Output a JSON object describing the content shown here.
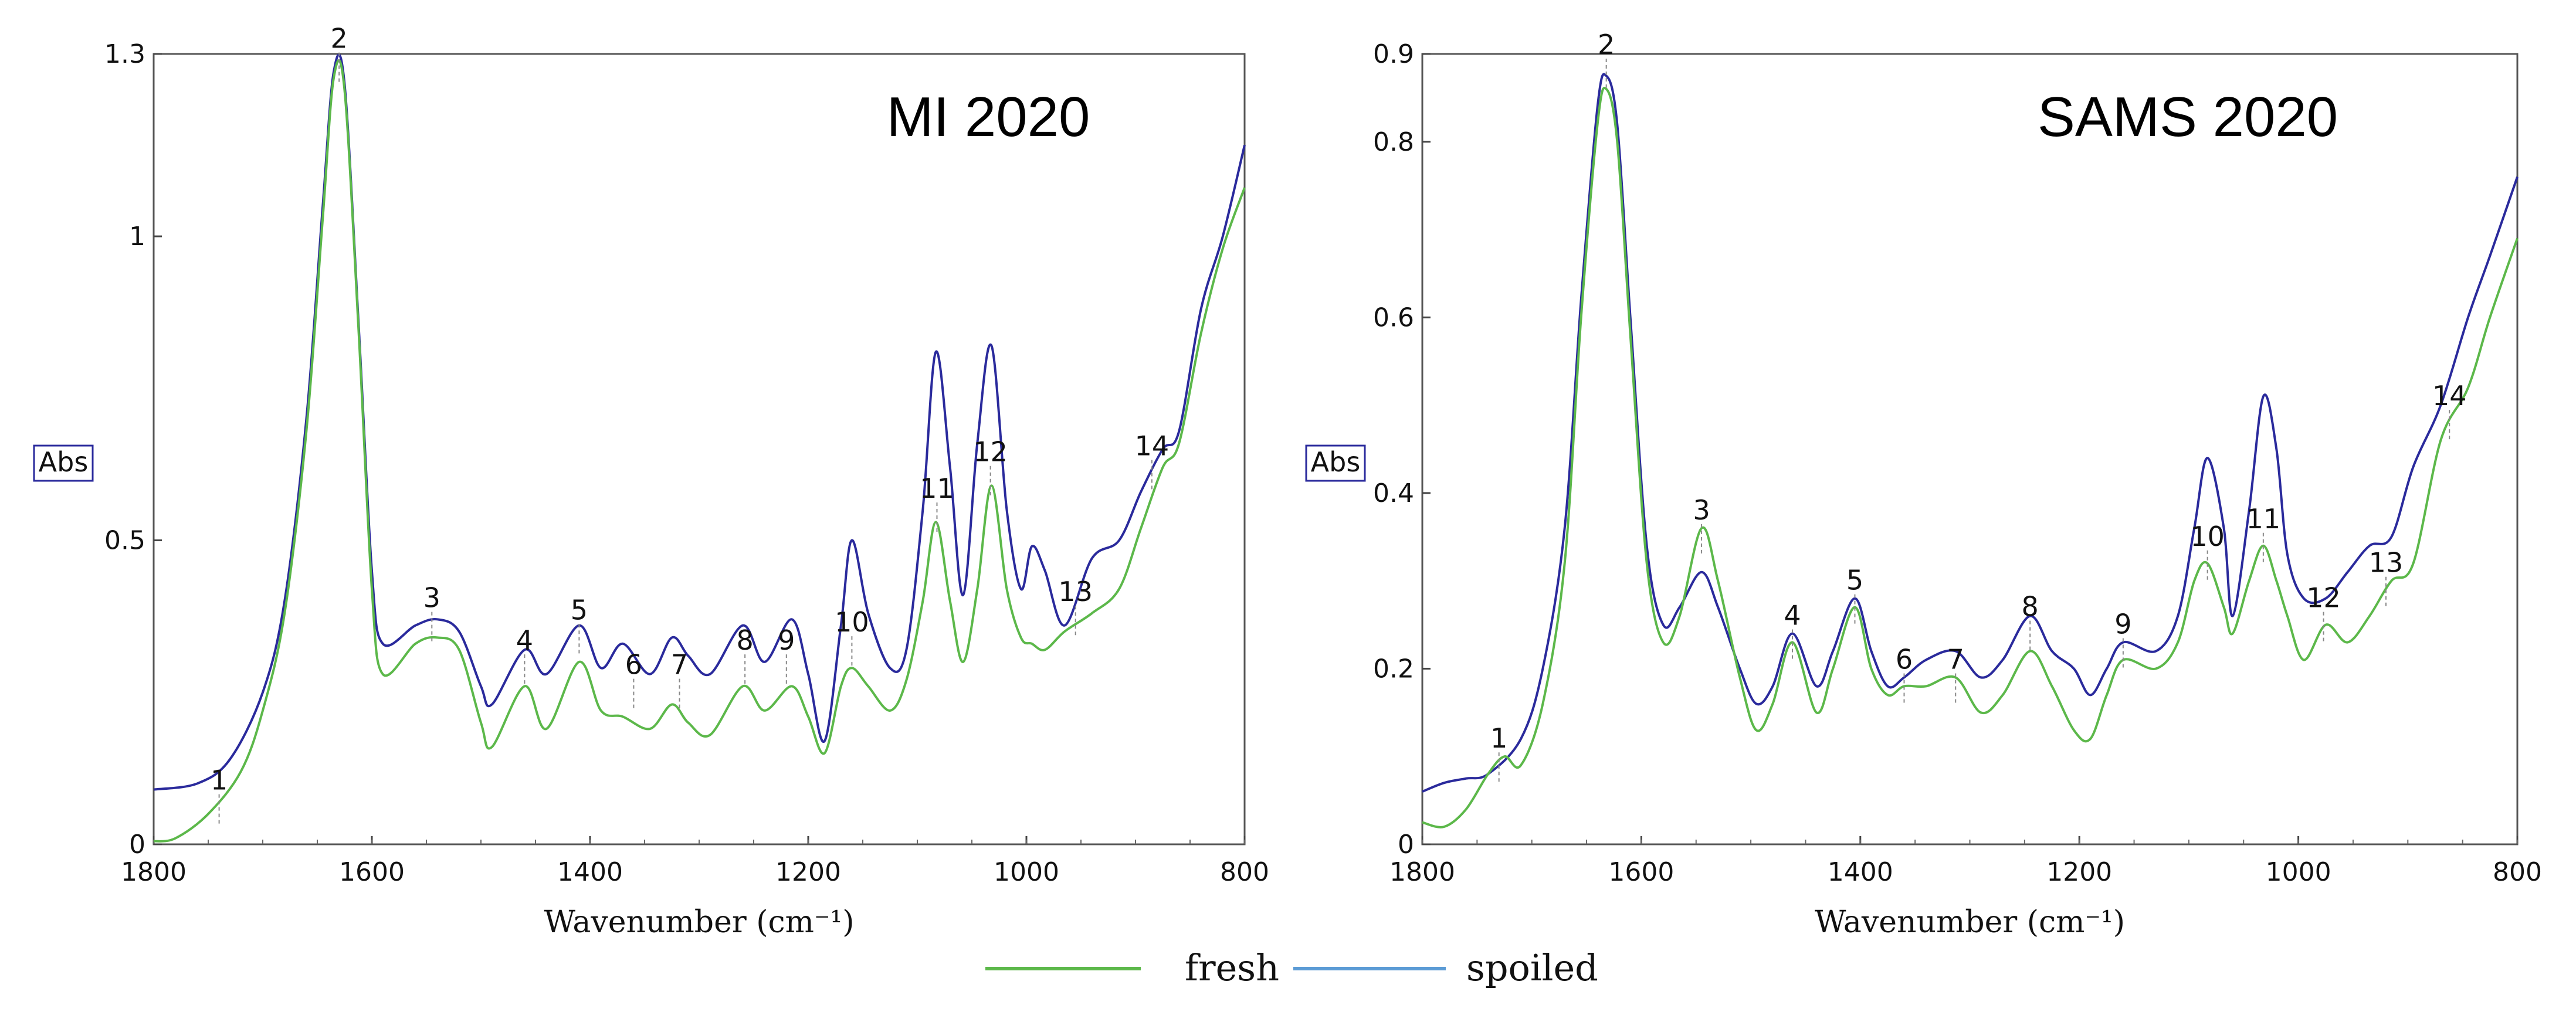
{
  "legend": [
    {
      "label": "fresh",
      "color": "#5cb84a"
    },
    {
      "label": "spoiled",
      "color": "#5b9bd5"
    }
  ],
  "chart_data": [
    {
      "type": "line",
      "title": "MI 2020",
      "xlabel": "Wavenumber (cm⁻¹)",
      "ylabel": "Abs",
      "xlim": [
        1800,
        800
      ],
      "ylim": [
        0,
        1.3
      ],
      "xticks": [
        1800,
        1600,
        1400,
        1200,
        1000,
        800
      ],
      "yticks": [
        0,
        0.5,
        1,
        1.3
      ],
      "ytick_labels": [
        "0",
        "0.5",
        "1",
        "1.3"
      ],
      "series": [
        {
          "name": "spoiled",
          "color": "#2a2a9c",
          "x": [
            1800,
            1760,
            1730,
            1700,
            1680,
            1660,
            1645,
            1635,
            1625,
            1612,
            1600,
            1590,
            1560,
            1540,
            1520,
            1500,
            1490,
            1460,
            1440,
            1410,
            1390,
            1370,
            1345,
            1325,
            1310,
            1290,
            1260,
            1240,
            1215,
            1200,
            1185,
            1170,
            1160,
            1145,
            1125,
            1110,
            1095,
            1083,
            1070,
            1058,
            1045,
            1032,
            1018,
            1005,
            995,
            983,
            965,
            940,
            915,
            895,
            875,
            860,
            840,
            820,
            800
          ],
          "y": [
            0.09,
            0.1,
            0.14,
            0.25,
            0.4,
            0.7,
            1.05,
            1.27,
            1.25,
            0.85,
            0.45,
            0.33,
            0.36,
            0.37,
            0.35,
            0.26,
            0.23,
            0.32,
            0.28,
            0.36,
            0.29,
            0.33,
            0.28,
            0.34,
            0.31,
            0.28,
            0.36,
            0.3,
            0.37,
            0.28,
            0.17,
            0.36,
            0.5,
            0.38,
            0.29,
            0.32,
            0.55,
            0.81,
            0.62,
            0.41,
            0.66,
            0.82,
            0.55,
            0.42,
            0.49,
            0.45,
            0.36,
            0.47,
            0.5,
            0.58,
            0.65,
            0.68,
            0.88,
            1.0,
            1.15
          ]
        },
        {
          "name": "fresh",
          "color": "#5cb84a",
          "x": [
            1800,
            1780,
            1750,
            1720,
            1700,
            1680,
            1660,
            1645,
            1635,
            1625,
            1612,
            1600,
            1590,
            1560,
            1540,
            1520,
            1500,
            1490,
            1460,
            1440,
            1410,
            1390,
            1370,
            1345,
            1325,
            1310,
            1290,
            1260,
            1240,
            1215,
            1200,
            1185,
            1170,
            1160,
            1145,
            1125,
            1110,
            1095,
            1083,
            1070,
            1058,
            1045,
            1032,
            1018,
            1005,
            995,
            983,
            965,
            940,
            915,
            895,
            875,
            860,
            840,
            820,
            800
          ],
          "y": [
            0.005,
            0.01,
            0.05,
            0.12,
            0.22,
            0.38,
            0.68,
            1.03,
            1.26,
            1.24,
            0.84,
            0.42,
            0.28,
            0.33,
            0.34,
            0.32,
            0.2,
            0.16,
            0.26,
            0.19,
            0.3,
            0.22,
            0.21,
            0.19,
            0.23,
            0.2,
            0.18,
            0.26,
            0.22,
            0.26,
            0.21,
            0.15,
            0.26,
            0.29,
            0.26,
            0.22,
            0.27,
            0.4,
            0.53,
            0.4,
            0.3,
            0.42,
            0.59,
            0.42,
            0.34,
            0.33,
            0.32,
            0.35,
            0.38,
            0.42,
            0.52,
            0.62,
            0.66,
            0.84,
            0.98,
            1.08
          ]
        }
      ],
      "peaks": [
        {
          "label": "1",
          "x": 1740,
          "y": 0.09
        },
        {
          "label": "2",
          "x": 1630,
          "y": 1.31
        },
        {
          "label": "3",
          "x": 1545,
          "y": 0.39
        },
        {
          "label": "4",
          "x": 1460,
          "y": 0.32
        },
        {
          "label": "5",
          "x": 1410,
          "y": 0.37
        },
        {
          "label": "6",
          "x": 1360,
          "y": 0.28
        },
        {
          "label": "7",
          "x": 1318,
          "y": 0.28
        },
        {
          "label": "8",
          "x": 1258,
          "y": 0.32
        },
        {
          "label": "9",
          "x": 1220,
          "y": 0.32
        },
        {
          "label": "10",
          "x": 1160,
          "y": 0.35
        },
        {
          "label": "11",
          "x": 1082,
          "y": 0.57
        },
        {
          "label": "12",
          "x": 1033,
          "y": 0.63
        },
        {
          "label": "13",
          "x": 955,
          "y": 0.4
        },
        {
          "label": "14",
          "x": 885,
          "y": 0.64
        }
      ]
    },
    {
      "type": "line",
      "title": "SAMS 2020",
      "xlabel": "Wavenumber (cm⁻¹)",
      "ylabel": "Abs",
      "xlim": [
        1800,
        800
      ],
      "ylim": [
        0,
        0.9
      ],
      "xticks": [
        1800,
        1600,
        1400,
        1200,
        1000,
        800
      ],
      "yticks": [
        0,
        0.2,
        0.4,
        0.6,
        0.8,
        0.9
      ],
      "ytick_labels": [
        "0",
        "0.2",
        "0.4",
        "0.6",
        "0.8",
        "0.9"
      ],
      "series": [
        {
          "name": "spoiled",
          "color": "#2a2a9c",
          "x": [
            1800,
            1780,
            1760,
            1740,
            1710,
            1690,
            1670,
            1655,
            1640,
            1632,
            1622,
            1610,
            1595,
            1580,
            1565,
            1545,
            1530,
            1510,
            1495,
            1480,
            1462,
            1440,
            1425,
            1405,
            1390,
            1375,
            1360,
            1340,
            1313,
            1290,
            1270,
            1245,
            1225,
            1205,
            1190,
            1175,
            1160,
            1130,
            1110,
            1095,
            1083,
            1068,
            1060,
            1045,
            1032,
            1020,
            1010,
            995,
            975,
            955,
            935,
            915,
            895,
            870,
            845,
            825,
            800
          ],
          "y": [
            0.06,
            0.07,
            0.075,
            0.08,
            0.12,
            0.2,
            0.36,
            0.62,
            0.84,
            0.875,
            0.82,
            0.6,
            0.34,
            0.25,
            0.27,
            0.31,
            0.27,
            0.2,
            0.16,
            0.18,
            0.24,
            0.18,
            0.22,
            0.28,
            0.22,
            0.18,
            0.19,
            0.21,
            0.22,
            0.19,
            0.21,
            0.26,
            0.22,
            0.2,
            0.17,
            0.2,
            0.23,
            0.22,
            0.26,
            0.36,
            0.44,
            0.36,
            0.26,
            0.38,
            0.51,
            0.45,
            0.33,
            0.28,
            0.28,
            0.31,
            0.34,
            0.35,
            0.43,
            0.5,
            0.6,
            0.67,
            0.76
          ]
        },
        {
          "name": "fresh",
          "color": "#5cb84a",
          "x": [
            1800,
            1780,
            1760,
            1740,
            1725,
            1710,
            1690,
            1670,
            1655,
            1640,
            1632,
            1622,
            1610,
            1595,
            1580,
            1565,
            1545,
            1530,
            1510,
            1495,
            1480,
            1462,
            1440,
            1425,
            1405,
            1390,
            1375,
            1360,
            1340,
            1313,
            1290,
            1270,
            1245,
            1225,
            1205,
            1190,
            1175,
            1160,
            1130,
            1110,
            1095,
            1083,
            1068,
            1060,
            1045,
            1032,
            1020,
            1010,
            995,
            975,
            955,
            935,
            915,
            895,
            870,
            845,
            825,
            800
          ],
          "y": [
            0.025,
            0.02,
            0.04,
            0.08,
            0.1,
            0.09,
            0.16,
            0.32,
            0.6,
            0.82,
            0.86,
            0.8,
            0.58,
            0.32,
            0.23,
            0.26,
            0.36,
            0.3,
            0.19,
            0.13,
            0.16,
            0.23,
            0.15,
            0.2,
            0.27,
            0.2,
            0.17,
            0.18,
            0.18,
            0.19,
            0.15,
            0.17,
            0.22,
            0.18,
            0.13,
            0.12,
            0.17,
            0.21,
            0.2,
            0.23,
            0.3,
            0.32,
            0.27,
            0.24,
            0.3,
            0.34,
            0.3,
            0.26,
            0.21,
            0.25,
            0.23,
            0.26,
            0.3,
            0.32,
            0.46,
            0.52,
            0.6,
            0.69
          ]
        }
      ],
      "peaks": [
        {
          "label": "1",
          "x": 1730,
          "y": 0.11
        },
        {
          "label": "2",
          "x": 1632,
          "y": 0.9
        },
        {
          "label": "3",
          "x": 1545,
          "y": 0.37
        },
        {
          "label": "4",
          "x": 1462,
          "y": 0.25
        },
        {
          "label": "5",
          "x": 1405,
          "y": 0.29
        },
        {
          "label": "6",
          "x": 1360,
          "y": 0.2
        },
        {
          "label": "7",
          "x": 1313,
          "y": 0.2
        },
        {
          "label": "8",
          "x": 1245,
          "y": 0.26
        },
        {
          "label": "9",
          "x": 1160,
          "y": 0.24
        },
        {
          "label": "10",
          "x": 1083,
          "y": 0.34
        },
        {
          "label": "11",
          "x": 1032,
          "y": 0.36
        },
        {
          "label": "12",
          "x": 977,
          "y": 0.27
        },
        {
          "label": "13",
          "x": 920,
          "y": 0.31
        },
        {
          "label": "14",
          "x": 862,
          "y": 0.5
        }
      ]
    }
  ]
}
